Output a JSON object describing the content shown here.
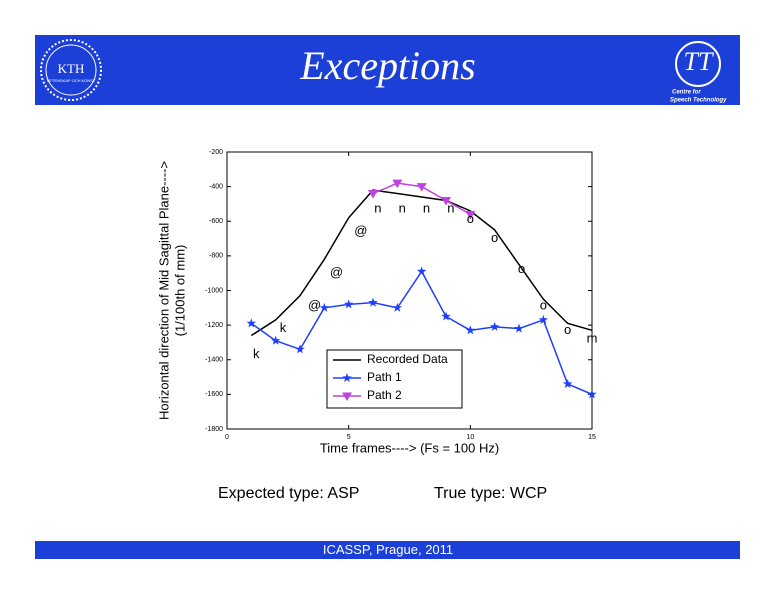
{
  "header": {
    "title": "Exceptions",
    "left_logo": {
      "name": "KTH",
      "motto": "VETENSKAP OCH KONST"
    },
    "right_logo": {
      "name": "TT",
      "line1": "Centre for",
      "line2": "Speech Technology"
    }
  },
  "captions": [
    "Expected type: ASP",
    "True type: WCP"
  ],
  "footer": "ICASSP, Prague,  2011",
  "chart_data": {
    "type": "line",
    "xlabel": "Time frames---->  (Fs = 100 Hz)",
    "ylabel": [
      "Horizontal direction of Mid Sagittal Plane---->",
      "(1/100th of mm)"
    ],
    "x": [
      1,
      2,
      3,
      4,
      5,
      6,
      7,
      8,
      9,
      10,
      11,
      12,
      13,
      14,
      15
    ],
    "xlim": [
      0,
      15
    ],
    "xticks": [
      0,
      5,
      10,
      15
    ],
    "ylim": [
      -1800,
      -200
    ],
    "yticks": [
      -200,
      -400,
      -600,
      -800,
      -1000,
      -1200,
      -1400,
      -1600,
      -1800
    ],
    "legend": "lower-center",
    "series": [
      {
        "name": "Recorded Data",
        "color": "#000000",
        "marker": "none",
        "values": [
          -1260,
          -1170,
          -1030,
          -820,
          -580,
          -420,
          -440,
          -460,
          -480,
          -540,
          -650,
          -850,
          -1050,
          -1190,
          -1230
        ]
      },
      {
        "name": "Path 1",
        "color": "#1f3fff",
        "marker": "star",
        "values": [
          -1190,
          -1290,
          -1340,
          -1100,
          -1080,
          -1070,
          -1100,
          -890,
          -1150,
          -1230,
          -1210,
          -1220,
          -1170,
          -1540,
          -1600
        ]
      },
      {
        "name": "Path 2",
        "color": "#c040e0",
        "marker": "triangle",
        "x": [
          6,
          7,
          8,
          9,
          10
        ],
        "values": [
          -440,
          -380,
          -400,
          -480,
          -560
        ]
      }
    ],
    "annotations": [
      {
        "text": "k",
        "x": 1.2,
        "y": -1370
      },
      {
        "text": "k",
        "x": 2.3,
        "y": -1220
      },
      {
        "text": "@",
        "x": 3.6,
        "y": -1090
      },
      {
        "text": "@",
        "x": 4.5,
        "y": -900
      },
      {
        "text": "@",
        "x": 5.5,
        "y": -660
      },
      {
        "text": "n",
        "x": 6.2,
        "y": -530
      },
      {
        "text": "n",
        "x": 7.2,
        "y": -530
      },
      {
        "text": "n",
        "x": 8.2,
        "y": -530
      },
      {
        "text": "n",
        "x": 9.2,
        "y": -530
      },
      {
        "text": "o",
        "x": 10.0,
        "y": -590
      },
      {
        "text": "o",
        "x": 11.0,
        "y": -700
      },
      {
        "text": "o",
        "x": 12.1,
        "y": -880
      },
      {
        "text": "o",
        "x": 13.0,
        "y": -1090
      },
      {
        "text": "o",
        "x": 14.0,
        "y": -1230
      },
      {
        "text": "m",
        "x": 15.0,
        "y": -1280
      }
    ]
  }
}
